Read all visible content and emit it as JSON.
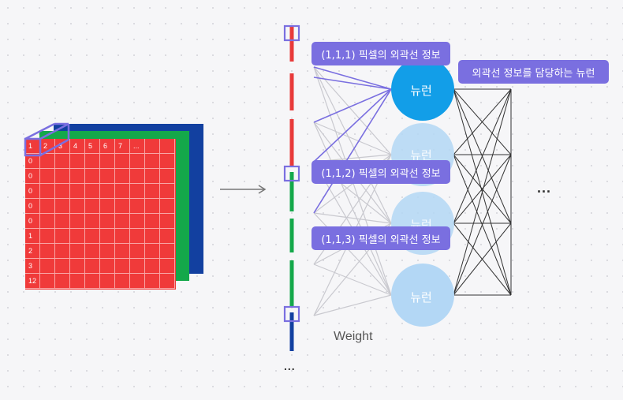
{
  "tensor": {
    "header_row": [
      "1",
      "2",
      "3",
      "4",
      "5",
      "6",
      "7",
      "..."
    ],
    "first_column": [
      "1",
      "0",
      "0",
      "0",
      "0",
      "0",
      "1",
      "2",
      "3",
      "12"
    ],
    "colors": {
      "red": "#f03a3a",
      "green": "#14a84a",
      "blue": "#1240a0"
    }
  },
  "pixel_labels": [
    "(1,1,1) 픽셀의 외곽선 정보",
    "(1,1,2) 픽셀의 외곽선 정보",
    "(1,1,3) 픽셀의 외곽선 정보"
  ],
  "neuron_label": "뉴런",
  "neuron_role_label": "외곽선 정보를 담당하는 뉴런",
  "weight_label": "Weight",
  "ellipsis": "...",
  "colors": {
    "accent": "#7a6fe0",
    "neuron_active": "#129ee8",
    "neuron_inactive": "#b3d7f5",
    "vector_red": "#e83a3a",
    "vector_green": "#14a84a",
    "vector_blue": "#1240a0"
  }
}
